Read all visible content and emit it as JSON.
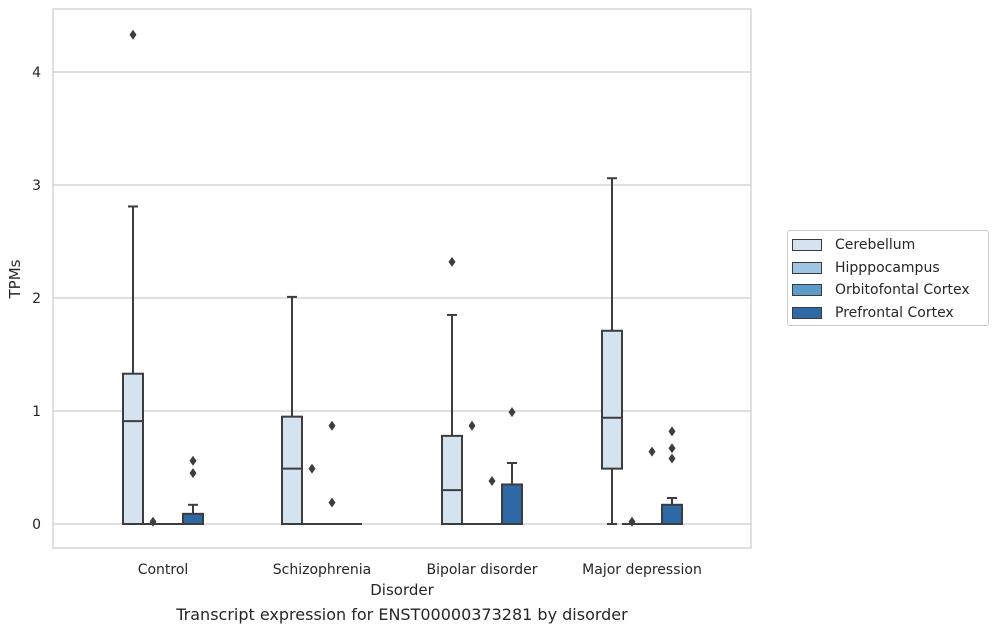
{
  "chart_data": {
    "type": "box",
    "title": "Transcript expression for ENST00000373281 by disorder",
    "xlabel": "Disorder",
    "ylabel": "TPMs",
    "ylim": [
      -0.2,
      4.55
    ],
    "yticks": [
      0,
      1,
      2,
      3,
      4
    ],
    "categories": [
      "Control",
      "Schizophrenia",
      "Bipolar disorder",
      "Major depression"
    ],
    "grid": true,
    "legend_position": "right",
    "series": [
      {
        "name": "Cerebellum",
        "color": "#d5e3f1",
        "boxes": [
          {
            "whisker_low": 0,
            "q1": 0,
            "median": 0.91,
            "q3": 1.33,
            "whisker_high": 2.81,
            "outliers": [
              4.33
            ]
          },
          {
            "whisker_low": 0,
            "q1": 0,
            "median": 0.49,
            "q3": 0.95,
            "whisker_high": 2.01,
            "outliers": []
          },
          {
            "whisker_low": 0,
            "q1": 0,
            "median": 0.3,
            "q3": 0.78,
            "whisker_high": 1.85,
            "outliers": [
              2.32
            ]
          },
          {
            "whisker_low": 0,
            "q1": 0.49,
            "median": 0.94,
            "q3": 1.71,
            "whisker_high": 3.06,
            "outliers": []
          }
        ]
      },
      {
        "name": "Hipppocampus",
        "color": "#9fc4e1",
        "boxes": [
          {
            "whisker_low": 0,
            "q1": 0,
            "median": 0,
            "q3": 0,
            "whisker_high": 0,
            "outliers": [
              0.02
            ]
          },
          {
            "whisker_low": 0,
            "q1": 0,
            "median": 0,
            "q3": 0,
            "whisker_high": 0,
            "outliers": [
              0.49
            ]
          },
          {
            "whisker_low": 0,
            "q1": 0,
            "median": 0,
            "q3": 0,
            "whisker_high": 0,
            "outliers": [
              0.87
            ]
          },
          {
            "whisker_low": 0,
            "q1": 0,
            "median": 0,
            "q3": 0,
            "whisker_high": 0,
            "outliers": [
              0.02
            ]
          }
        ]
      },
      {
        "name": "Orbitofontal Cortex",
        "color": "#5b9bc9",
        "boxes": [
          {
            "whisker_low": 0,
            "q1": 0,
            "median": 0,
            "q3": 0,
            "whisker_high": 0,
            "outliers": []
          },
          {
            "whisker_low": 0,
            "q1": 0,
            "median": 0,
            "q3": 0,
            "whisker_high": 0,
            "outliers": [
              0.87,
              0.19
            ]
          },
          {
            "whisker_low": 0,
            "q1": 0,
            "median": 0,
            "q3": 0,
            "whisker_high": 0,
            "outliers": [
              0.38
            ]
          },
          {
            "whisker_low": 0,
            "q1": 0,
            "median": 0,
            "q3": 0,
            "whisker_high": 0,
            "outliers": [
              0.64
            ]
          }
        ]
      },
      {
        "name": "Prefrontal Cortex",
        "color": "#2e69a6",
        "boxes": [
          {
            "whisker_low": 0,
            "q1": 0,
            "median": 0,
            "q3": 0.09,
            "whisker_high": 0.17,
            "outliers": [
              0.56,
              0.45
            ]
          },
          {
            "whisker_low": 0,
            "q1": 0,
            "median": 0,
            "q3": 0,
            "whisker_high": 0,
            "outliers": []
          },
          {
            "whisker_low": 0,
            "q1": 0,
            "median": 0,
            "q3": 0.35,
            "whisker_high": 0.54,
            "outliers": [
              0.99
            ]
          },
          {
            "whisker_low": 0,
            "q1": 0,
            "median": 0,
            "q3": 0.17,
            "whisker_high": 0.23,
            "outliers": [
              0.82,
              0.67,
              0.58
            ]
          }
        ]
      }
    ]
  }
}
